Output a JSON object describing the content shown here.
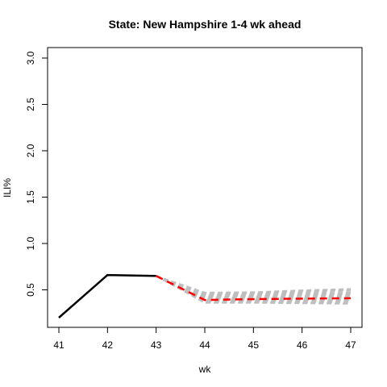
{
  "chart_data": {
    "type": "line",
    "title": "State: New Hampshire 1-4 wk ahead",
    "xlabel": "wk",
    "ylabel": "ILI%",
    "xlim": [
      41,
      47
    ],
    "ylim": [
      0.2,
      3.0
    ],
    "x_ticks": [
      "41",
      "42",
      "43",
      "44",
      "45",
      "46",
      "47"
    ],
    "y_ticks": [
      "0.5",
      "1.0",
      "1.5",
      "2.0",
      "2.5",
      "3.0"
    ],
    "grid": false,
    "legend": "none",
    "series": [
      {
        "role": "observed",
        "color": "#000000",
        "style": "solid",
        "x": [
          41,
          42,
          43
        ],
        "y": [
          0.2,
          0.66,
          0.65
        ]
      },
      {
        "role": "forecast-mean",
        "color": "#ff0000",
        "style": "dashed",
        "x": [
          43,
          44,
          45,
          46,
          47
        ],
        "y": [
          0.65,
          0.39,
          0.4,
          0.405,
          0.41
        ]
      }
    ],
    "samples": {
      "color": "#bebebe",
      "style": "dashed",
      "x": [
        43,
        44,
        45,
        46,
        47
      ],
      "y": [
        [
          0.65,
          0.36,
          0.36,
          0.355,
          0.35
        ],
        [
          0.65,
          0.37,
          0.37,
          0.365,
          0.36
        ],
        [
          0.65,
          0.38,
          0.38,
          0.38,
          0.375
        ],
        [
          0.65,
          0.39,
          0.39,
          0.39,
          0.39
        ],
        [
          0.65,
          0.4,
          0.4,
          0.405,
          0.41
        ],
        [
          0.65,
          0.41,
          0.415,
          0.42,
          0.425
        ],
        [
          0.65,
          0.42,
          0.425,
          0.435,
          0.44
        ],
        [
          0.65,
          0.43,
          0.435,
          0.445,
          0.455
        ],
        [
          0.65,
          0.44,
          0.445,
          0.46,
          0.47
        ],
        [
          0.65,
          0.45,
          0.455,
          0.475,
          0.49
        ],
        [
          0.65,
          0.46,
          0.465,
          0.485,
          0.5
        ],
        [
          0.65,
          0.47,
          0.475,
          0.495,
          0.51
        ]
      ]
    }
  }
}
